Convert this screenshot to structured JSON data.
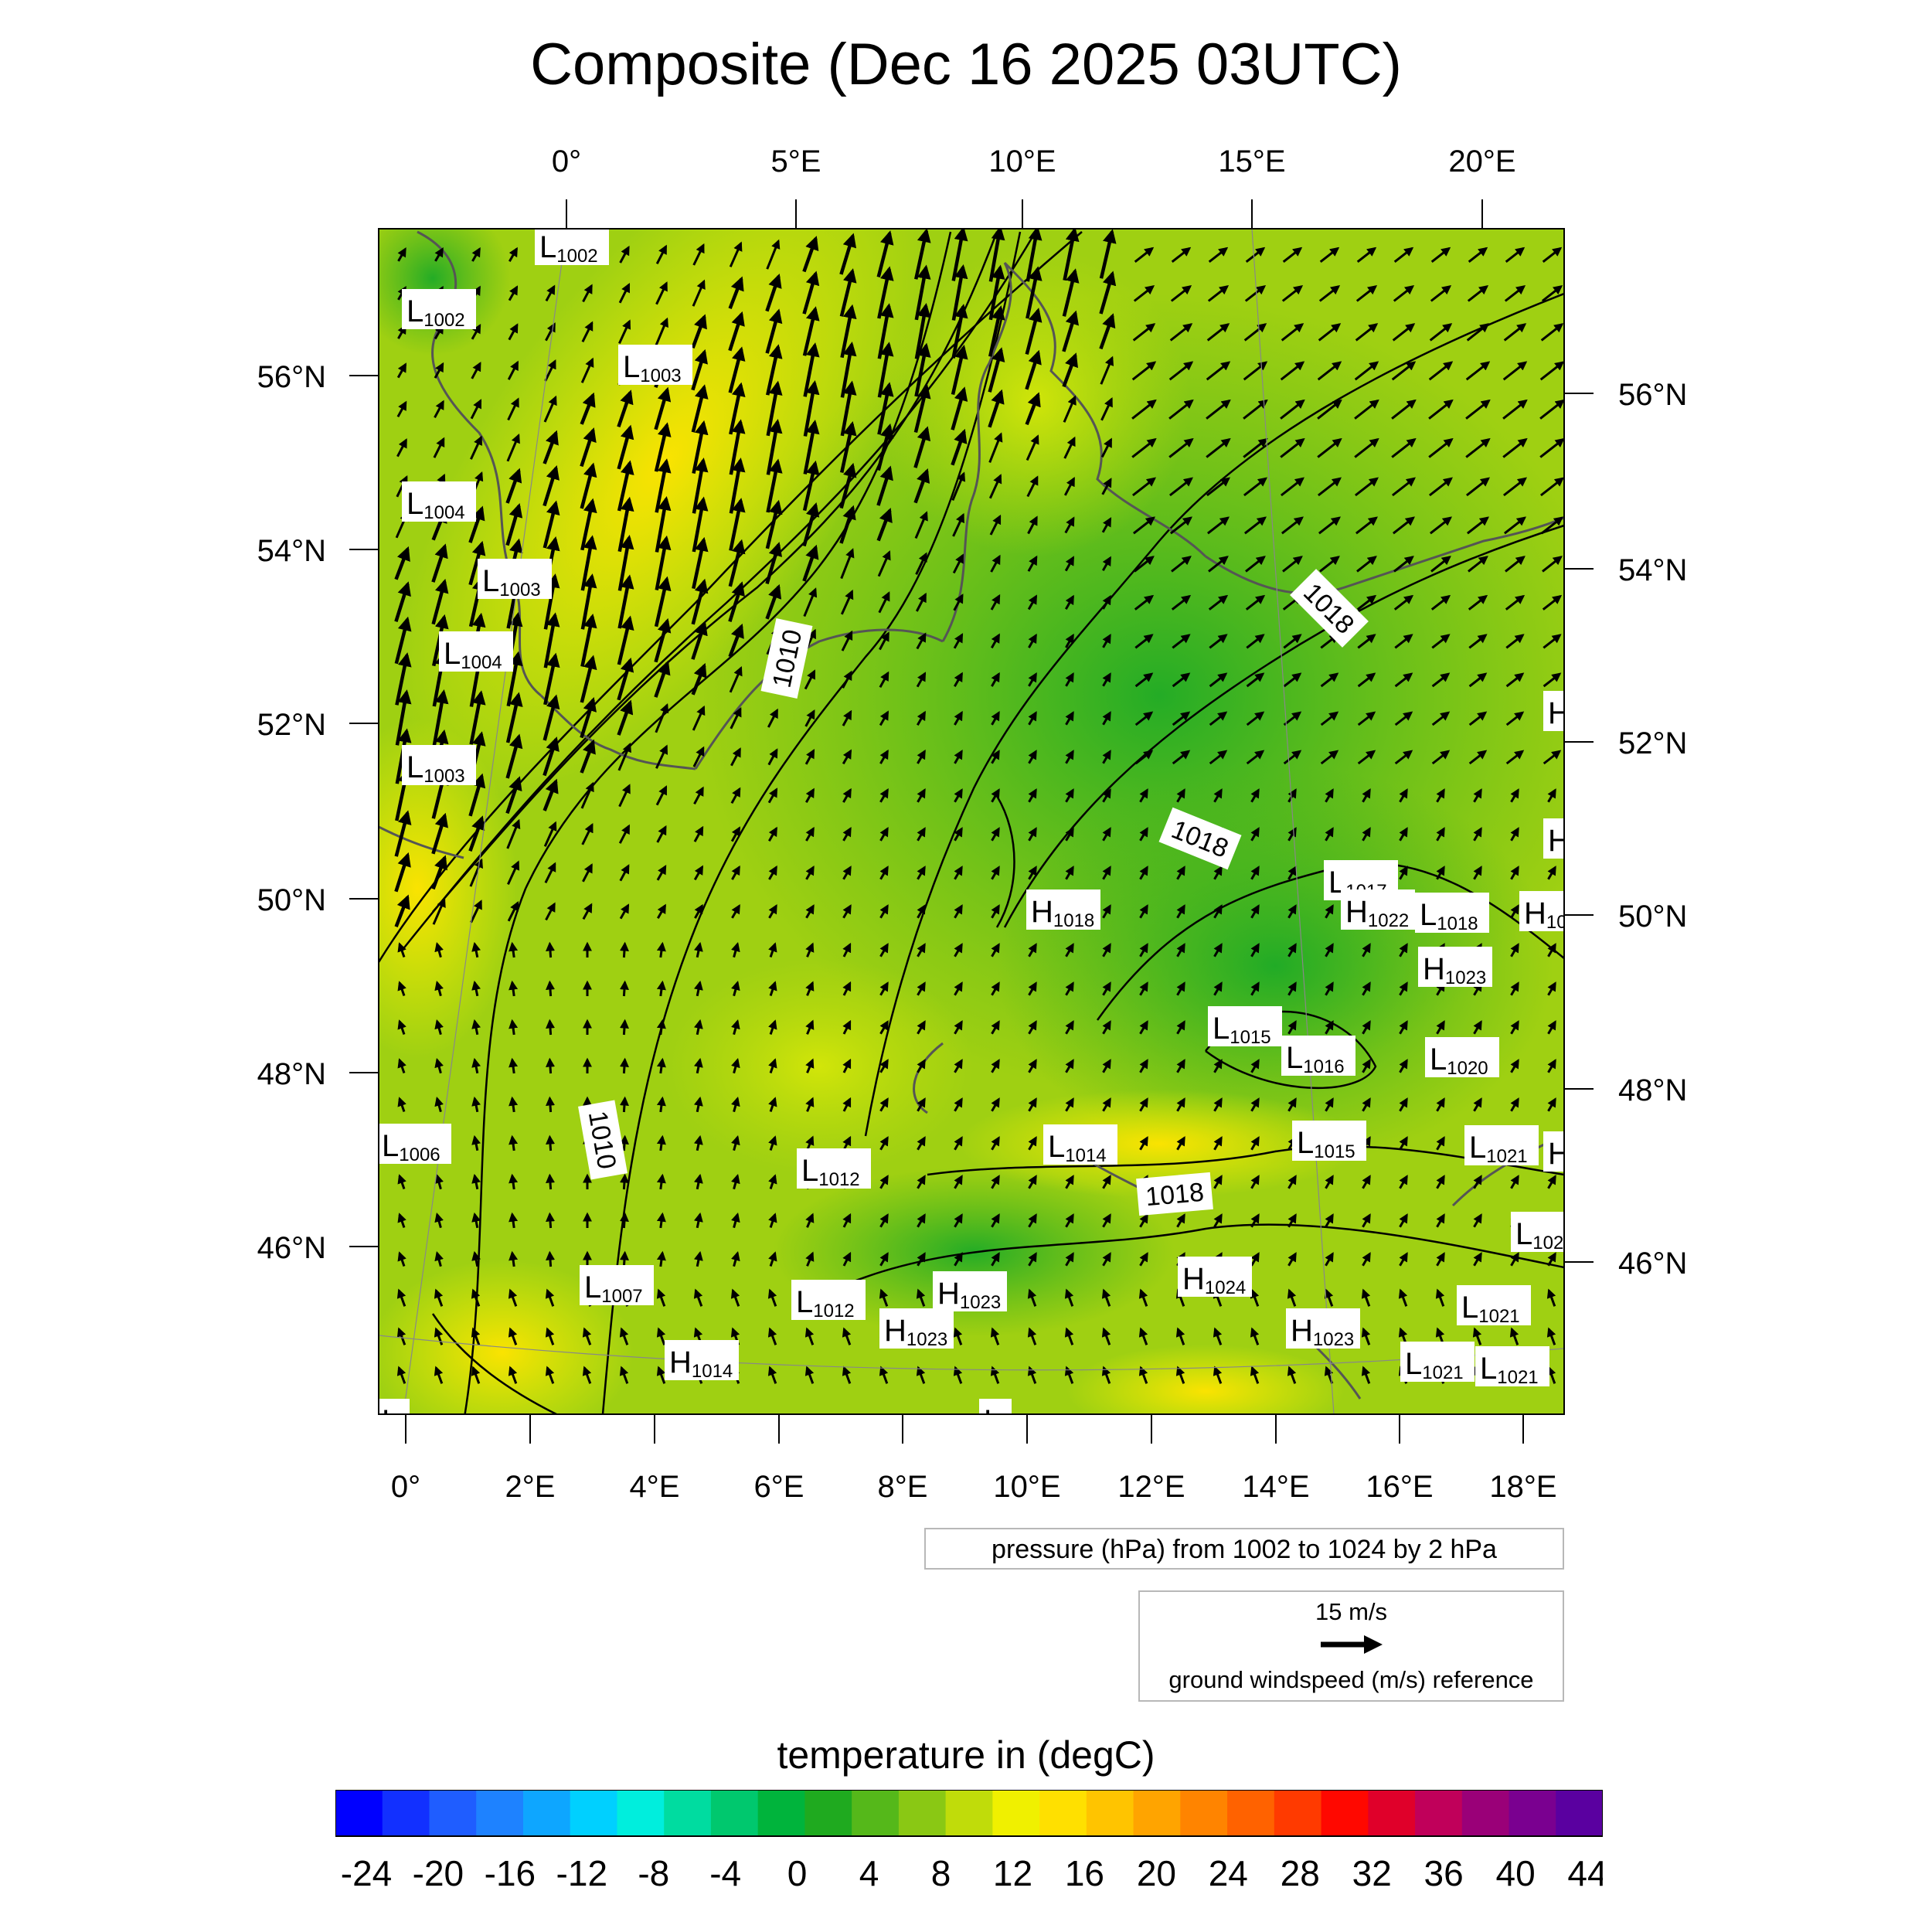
{
  "title": "Composite (Dec 16 2025 03UTC)",
  "top_lon_labels": [
    "0°",
    "5°E",
    "10°E",
    "15°E",
    "20°E"
  ],
  "bottom_lon_labels": [
    "0°",
    "2°E",
    "4°E",
    "6°E",
    "8°E",
    "10°E",
    "12°E",
    "14°E",
    "16°E",
    "18°E"
  ],
  "left_lat_labels": [
    "56°N",
    "54°N",
    "52°N",
    "50°N",
    "48°N",
    "46°N"
  ],
  "right_lat_labels": [
    "56°N",
    "54°N",
    "52°N",
    "50°N",
    "48°N",
    "46°N"
  ],
  "pressure_note": "pressure (hPa) from 1002 to 1024 by 2 hPa",
  "wind_reference": {
    "speed": "15 m/s",
    "description": "ground windspeed (m/s) reference"
  },
  "colorbar": {
    "title": "temperature in (degC)",
    "labels": [
      "-24",
      "-20",
      "-16",
      "-12",
      "-8",
      "-4",
      "0",
      "4",
      "8",
      "12",
      "16",
      "20",
      "24",
      "28",
      "32",
      "36",
      "40",
      "44"
    ],
    "colors": [
      "#0000ff",
      "#1230ff",
      "#1f5dff",
      "#1e82ff",
      "#0ea6ff",
      "#00d0ff",
      "#00eedd",
      "#00dca0",
      "#00c86e",
      "#00b43c",
      "#1faa1f",
      "#55b81a",
      "#8ac814",
      "#c0dc0a",
      "#f0f000",
      "#ffe000",
      "#ffc400",
      "#ffa400",
      "#ff8400",
      "#ff6200",
      "#ff3a00",
      "#ff0800",
      "#e0002a",
      "#c0005a",
      "#9a0078",
      "#7a0090",
      "#5a00a0"
    ]
  },
  "isobar_labels": [
    {
      "text": "1010"
    },
    {
      "text": "1010"
    },
    {
      "text": "1018"
    },
    {
      "text": "1018"
    },
    {
      "text": "1018"
    }
  ],
  "pressure_centers": [
    {
      "type": "L",
      "value": "1002"
    },
    {
      "type": "L",
      "value": "1002"
    },
    {
      "type": "L",
      "value": "1003"
    },
    {
      "type": "L",
      "value": "1004"
    },
    {
      "type": "L",
      "value": "1003"
    },
    {
      "type": "L",
      "value": "1004"
    },
    {
      "type": "L",
      "value": "1003"
    },
    {
      "type": "H",
      "value": ""
    },
    {
      "type": "H",
      "value": ""
    },
    {
      "type": "L",
      "value": "1017"
    },
    {
      "type": "H",
      "value": "1022"
    },
    {
      "type": "L",
      "value": "1018"
    },
    {
      "type": "H",
      "value": "10"
    },
    {
      "type": "H",
      "value": "1018"
    },
    {
      "type": "H",
      "value": "1023"
    },
    {
      "type": "L",
      "value": "1015"
    },
    {
      "type": "L",
      "value": "1016"
    },
    {
      "type": "L",
      "value": "1020"
    },
    {
      "type": "L",
      "value": "1006"
    },
    {
      "type": "L",
      "value": "1014"
    },
    {
      "type": "L",
      "value": "1015"
    },
    {
      "type": "L",
      "value": "1021"
    },
    {
      "type": "H",
      "value": ""
    },
    {
      "type": "L",
      "value": "1012"
    },
    {
      "type": "L",
      "value": "102"
    },
    {
      "type": "L",
      "value": "1007"
    },
    {
      "type": "L",
      "value": "1012"
    },
    {
      "type": "H",
      "value": "1023"
    },
    {
      "type": "H",
      "value": "1024"
    },
    {
      "type": "L",
      "value": "1021"
    },
    {
      "type": "H",
      "value": "1023"
    },
    {
      "type": "H",
      "value": "1023"
    },
    {
      "type": "H",
      "value": "1014"
    },
    {
      "type": "L",
      "value": "1021"
    },
    {
      "type": "L",
      "value": "1021"
    },
    {
      "type": "L",
      "value": ""
    },
    {
      "type": "L",
      "value": ""
    }
  ]
}
